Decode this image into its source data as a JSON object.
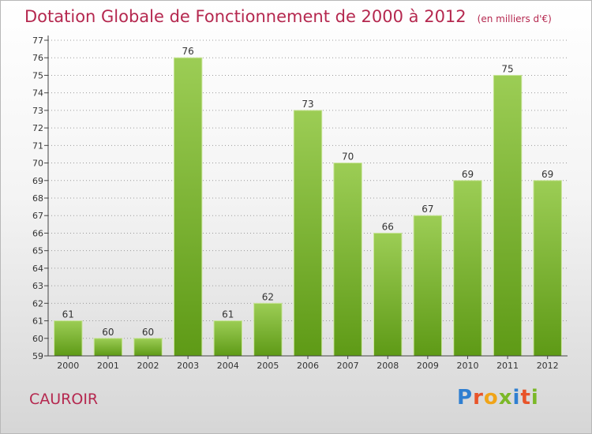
{
  "header": {
    "title": "Dotation Globale de Fonctionnement de 2000 à 2012",
    "unit": "(en milliers d'€)"
  },
  "footer": {
    "place": "CAUROIR",
    "logo": "Proxiti"
  },
  "colors": {
    "title": "#b5284f",
    "bar_top": "#9ccd55",
    "bar_bottom": "#5e9a16",
    "grid": "#9a9a9a"
  },
  "chart_data": {
    "type": "bar",
    "title": "Dotation Globale de Fonctionnement de 2000 à 2012",
    "subtitle": "(en milliers d'€)",
    "xlabel": "",
    "ylabel": "",
    "categories": [
      "2000",
      "2001",
      "2002",
      "2003",
      "2004",
      "2005",
      "2006",
      "2007",
      "2008",
      "2009",
      "2010",
      "2011",
      "2012"
    ],
    "values": [
      61,
      60,
      60,
      76,
      61,
      62,
      73,
      70,
      66,
      67,
      69,
      75,
      69
    ],
    "ylim": [
      59,
      77
    ],
    "yticks": [
      59,
      60,
      61,
      62,
      63,
      64,
      65,
      66,
      67,
      68,
      69,
      70,
      71,
      72,
      73,
      74,
      75,
      76,
      77
    ],
    "grid": true,
    "data_labels": true
  }
}
